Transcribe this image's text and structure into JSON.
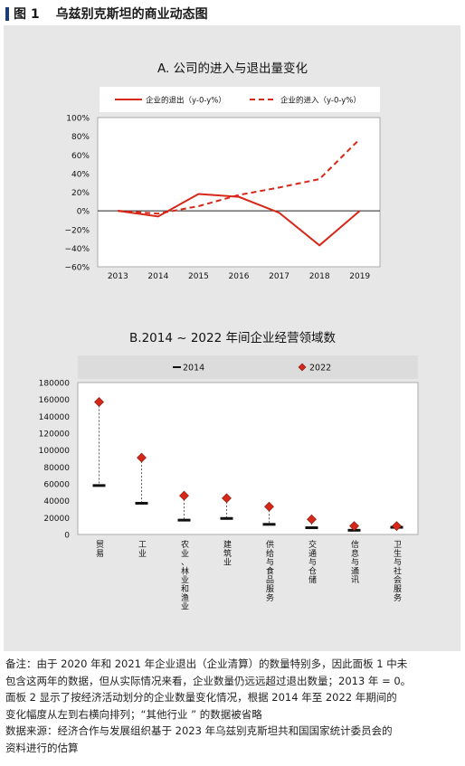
{
  "figure": {
    "number": "图 1",
    "title": "乌兹别克斯坦的商业动态图"
  },
  "notes": {
    "line1": "备注：由于 2020 年和 2021 年企业退出（企业清算）的数量特别多，因此面板 1 中未",
    "line2": "包含这两年的数据，但从实际情况来看，企业数量仍远远超过退出数量；2013 年 = 0。",
    "line3": "面板 2 显示了按经济活动划分的企业数量变化情况，根据 2014 年至 2022 年期间的",
    "line4": "变化幅度从左到右横向排列；“其他行业 ” 的数据被省略",
    "line5": "数据来源：经济合作与发展组织基于 2023 年乌兹别克斯坦共和国国家统计委员会的",
    "line6": "资料进行的估算"
  },
  "chart_data": [
    {
      "type": "line",
      "title": "A. 公司的进入与退出量变化",
      "x": [
        "2013",
        "2014",
        "2015",
        "2016",
        "2017",
        "2018",
        "2019"
      ],
      "yticks": [
        "100%",
        "80%",
        "60%",
        "40%",
        "20%",
        "0%",
        "−20%",
        "−40%",
        "−60%"
      ],
      "ylim": [
        -60,
        100
      ],
      "legend_position": "top",
      "series": [
        {
          "name": "企业的退出（y-0-y%）",
          "style": "solid",
          "color": "#d62718",
          "values": [
            0,
            -6,
            18,
            15,
            -2,
            -37,
            0
          ]
        },
        {
          "name": "企业的进入（y-0-y%）",
          "style": "dashed",
          "color": "#d62718",
          "values": [
            0,
            -3,
            5,
            17,
            25,
            34,
            77
          ]
        }
      ]
    },
    {
      "type": "scatter",
      "title": "B.2014 ~ 2022 年间企业经营领域数",
      "categories": [
        "贸易",
        "工业",
        "农业、林业和渔业",
        "建筑业",
        "供给与食品服务",
        "交通与仓储",
        "信息与通讯",
        "卫生与社会服务"
      ],
      "yticks": [
        "180000",
        "160000",
        "140000",
        "120000",
        "100000",
        "80000",
        "60000",
        "40000",
        "20000",
        "0"
      ],
      "ylim": [
        0,
        180000
      ],
      "legend_position": "top",
      "series": [
        {
          "name": "2014",
          "marker": "dash",
          "color": "#111111",
          "values": [
            58000,
            37000,
            17000,
            19000,
            12000,
            8000,
            5000,
            8500
          ]
        },
        {
          "name": "2022",
          "marker": "diamond",
          "color": "#d62718",
          "values": [
            157000,
            91000,
            46000,
            43000,
            33000,
            18000,
            10000,
            10000
          ]
        }
      ]
    }
  ]
}
